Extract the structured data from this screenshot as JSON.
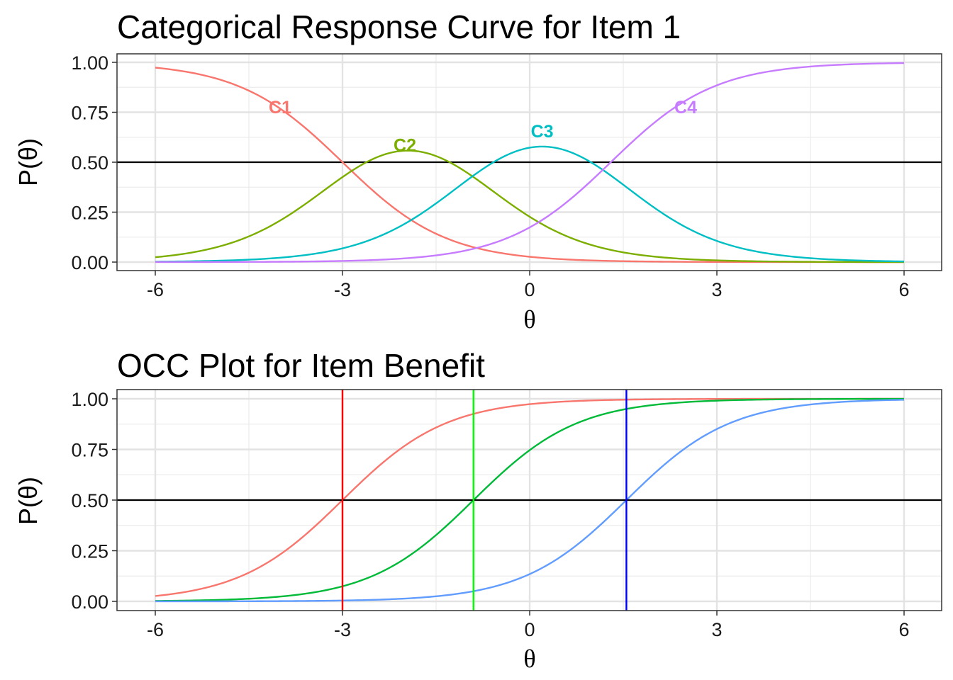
{
  "chart_data": [
    {
      "type": "line",
      "title": "Categorical Response Curve for Item 1",
      "xlabel": "θ",
      "ylabel": "P(θ)",
      "xlim": [
        -6,
        6
      ],
      "ylim": [
        0,
        1
      ],
      "x_ticks": [
        -6,
        -3,
        0,
        3,
        6
      ],
      "x_tick_labels": [
        "-6",
        "-3",
        "0",
        "3",
        "6"
      ],
      "y_ticks": [
        0,
        0.25,
        0.5,
        0.75,
        1
      ],
      "y_tick_labels": [
        "0.00",
        "0.25",
        "0.50",
        "0.75",
        "1.00"
      ],
      "grid": true,
      "hline": 0.5,
      "model": {
        "form": "graded_response",
        "discrimination": 1.2,
        "thresholds": [
          -3.0,
          -0.9,
          1.3
        ]
      },
      "series": [
        {
          "name": "C1",
          "color": "#F8766D",
          "label_x": -4.0,
          "label_y": 0.745
        },
        {
          "name": "C2",
          "color": "#7CAE00",
          "label_x": -2.0,
          "label_y": 0.555
        },
        {
          "name": "C3",
          "color": "#00BFC4",
          "label_x": 0.2,
          "label_y": 0.625
        },
        {
          "name": "C4",
          "color": "#C77CFF",
          "label_x": 2.5,
          "label_y": 0.745
        }
      ]
    },
    {
      "type": "line",
      "title": "OCC Plot for Item Benefit",
      "xlabel": "θ",
      "ylabel": "P(θ)",
      "xlim": [
        -6,
        6
      ],
      "ylim": [
        0,
        1
      ],
      "x_ticks": [
        -6,
        -3,
        0,
        3,
        6
      ],
      "x_tick_labels": [
        "-6",
        "-3",
        "0",
        "3",
        "6"
      ],
      "y_ticks": [
        0,
        0.25,
        0.5,
        0.75,
        1
      ],
      "y_tick_labels": [
        "0.00",
        "0.25",
        "0.50",
        "0.75",
        "1.00"
      ],
      "grid": true,
      "hline": 0.5,
      "model": {
        "form": "cumulative_logistic",
        "discrimination": 1.2
      },
      "series": [
        {
          "threshold": -3.0,
          "color": "#F8766D"
        },
        {
          "threshold": -0.9,
          "color": "#00BA38"
        },
        {
          "threshold": 1.55,
          "color": "#619CFF"
        }
      ],
      "vlines": [
        {
          "x": -3.0,
          "color": "#FF0000"
        },
        {
          "x": -0.9,
          "color": "#00FF00"
        },
        {
          "x": 1.55,
          "color": "#0000FF"
        }
      ]
    }
  ]
}
